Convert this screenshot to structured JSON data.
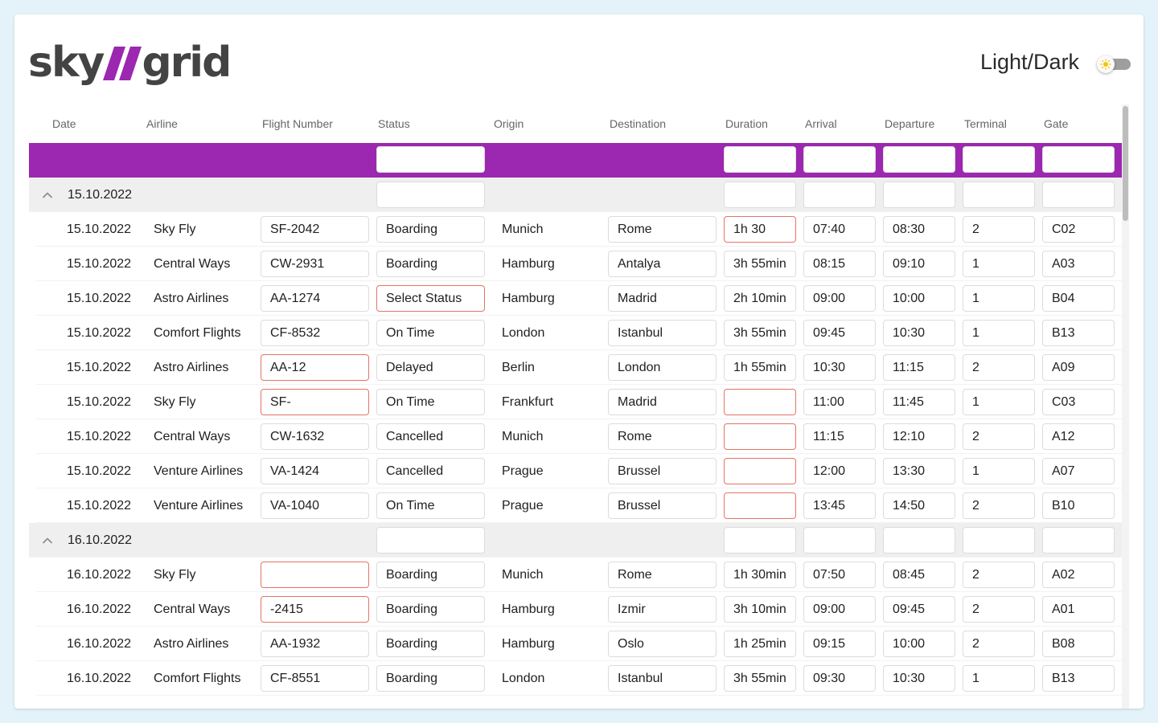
{
  "app": {
    "logo": {
      "left": "sky",
      "right": "grid"
    },
    "theme_label": "Light/Dark",
    "theme_toggle_state": "light",
    "accent_color": "#9c27b0",
    "error_color": "#e57368"
  },
  "columns": [
    "Date",
    "Airline",
    "Flight Number",
    "Status",
    "Origin",
    "Destination",
    "Duration",
    "Arrival",
    "Departure",
    "Terminal",
    "Gate"
  ],
  "groups": [
    {
      "label": "15.10.2022",
      "rows": [
        {
          "date": "15.10.2022",
          "airline": "Sky Fly",
          "flight": "SF-2042",
          "status": "Boarding",
          "origin": "Munich",
          "destination": "Rome",
          "duration": "1h 30",
          "arrival": "07:40",
          "departure": "08:30",
          "terminal": "2",
          "gate": "C02",
          "errors": [
            "duration"
          ]
        },
        {
          "date": "15.10.2022",
          "airline": "Central Ways",
          "flight": "CW-2931",
          "status": "Boarding",
          "origin": "Hamburg",
          "destination": "Antalya",
          "duration": "3h 55min",
          "arrival": "08:15",
          "departure": "09:10",
          "terminal": "1",
          "gate": "A03",
          "errors": []
        },
        {
          "date": "15.10.2022",
          "airline": "Astro Airlines",
          "flight": "AA-1274",
          "status": "Select Status",
          "origin": "Hamburg",
          "destination": "Madrid",
          "duration": "2h 10min",
          "arrival": "09:00",
          "departure": "10:00",
          "terminal": "1",
          "gate": "B04",
          "errors": [
            "status"
          ]
        },
        {
          "date": "15.10.2022",
          "airline": "Comfort Flights",
          "flight": "CF-8532",
          "status": "On Time",
          "origin": "London",
          "destination": "Istanbul",
          "duration": "3h 55min",
          "arrival": "09:45",
          "departure": "10:30",
          "terminal": "1",
          "gate": "B13",
          "errors": []
        },
        {
          "date": "15.10.2022",
          "airline": "Astro Airlines",
          "flight": "AA-12",
          "status": "Delayed",
          "origin": "Berlin",
          "destination": "London",
          "duration": "1h 55min",
          "arrival": "10:30",
          "departure": "11:15",
          "terminal": "2",
          "gate": "A09",
          "errors": [
            "flight"
          ]
        },
        {
          "date": "15.10.2022",
          "airline": "Sky Fly",
          "flight": "SF-",
          "status": "On Time",
          "origin": "Frankfurt",
          "destination": "Madrid",
          "duration": "",
          "arrival": "11:00",
          "departure": "11:45",
          "terminal": "1",
          "gate": "C03",
          "errors": [
            "flight",
            "duration"
          ]
        },
        {
          "date": "15.10.2022",
          "airline": "Central Ways",
          "flight": "CW-1632",
          "status": "Cancelled",
          "origin": "Munich",
          "destination": "Rome",
          "duration": "",
          "arrival": "11:15",
          "departure": "12:10",
          "terminal": "2",
          "gate": "A12",
          "errors": [
            "duration"
          ]
        },
        {
          "date": "15.10.2022",
          "airline": "Venture Airlines",
          "flight": "VA-1424",
          "status": "Cancelled",
          "origin": "Prague",
          "destination": "Brussel",
          "duration": "",
          "arrival": "12:00",
          "departure": "13:30",
          "terminal": "1",
          "gate": "A07",
          "errors": [
            "duration"
          ]
        },
        {
          "date": "15.10.2022",
          "airline": "Venture Airlines",
          "flight": "VA-1040",
          "status": "On Time",
          "origin": "Prague",
          "destination": "Brussel",
          "duration": "",
          "arrival": "13:45",
          "departure": "14:50",
          "terminal": "2",
          "gate": "B10",
          "errors": [
            "duration"
          ]
        }
      ]
    },
    {
      "label": "16.10.2022",
      "rows": [
        {
          "date": "16.10.2022",
          "airline": "Sky Fly",
          "flight": "",
          "status": "Boarding",
          "origin": "Munich",
          "destination": "Rome",
          "duration": "1h 30min",
          "arrival": "07:50",
          "departure": "08:45",
          "terminal": "2",
          "gate": "A02",
          "errors": [
            "flight"
          ]
        },
        {
          "date": "16.10.2022",
          "airline": "Central Ways",
          "flight": "-2415",
          "status": "Boarding",
          "origin": "Hamburg",
          "destination": "Izmir",
          "duration": "3h 10min",
          "arrival": "09:00",
          "departure": "09:45",
          "terminal": "2",
          "gate": "A01",
          "errors": [
            "flight"
          ]
        },
        {
          "date": "16.10.2022",
          "airline": "Astro Airlines",
          "flight": "AA-1932",
          "status": "Boarding",
          "origin": "Hamburg",
          "destination": "Oslo",
          "duration": "1h 25min",
          "arrival": "09:15",
          "departure": "10:00",
          "terminal": "2",
          "gate": "B08",
          "errors": []
        },
        {
          "date": "16.10.2022",
          "airline": "Comfort Flights",
          "flight": "CF-8551",
          "status": "Boarding",
          "origin": "London",
          "destination": "Istanbul",
          "duration": "3h 55min",
          "arrival": "09:30",
          "departure": "10:30",
          "terminal": "1",
          "gate": "B13",
          "errors": []
        }
      ]
    }
  ]
}
